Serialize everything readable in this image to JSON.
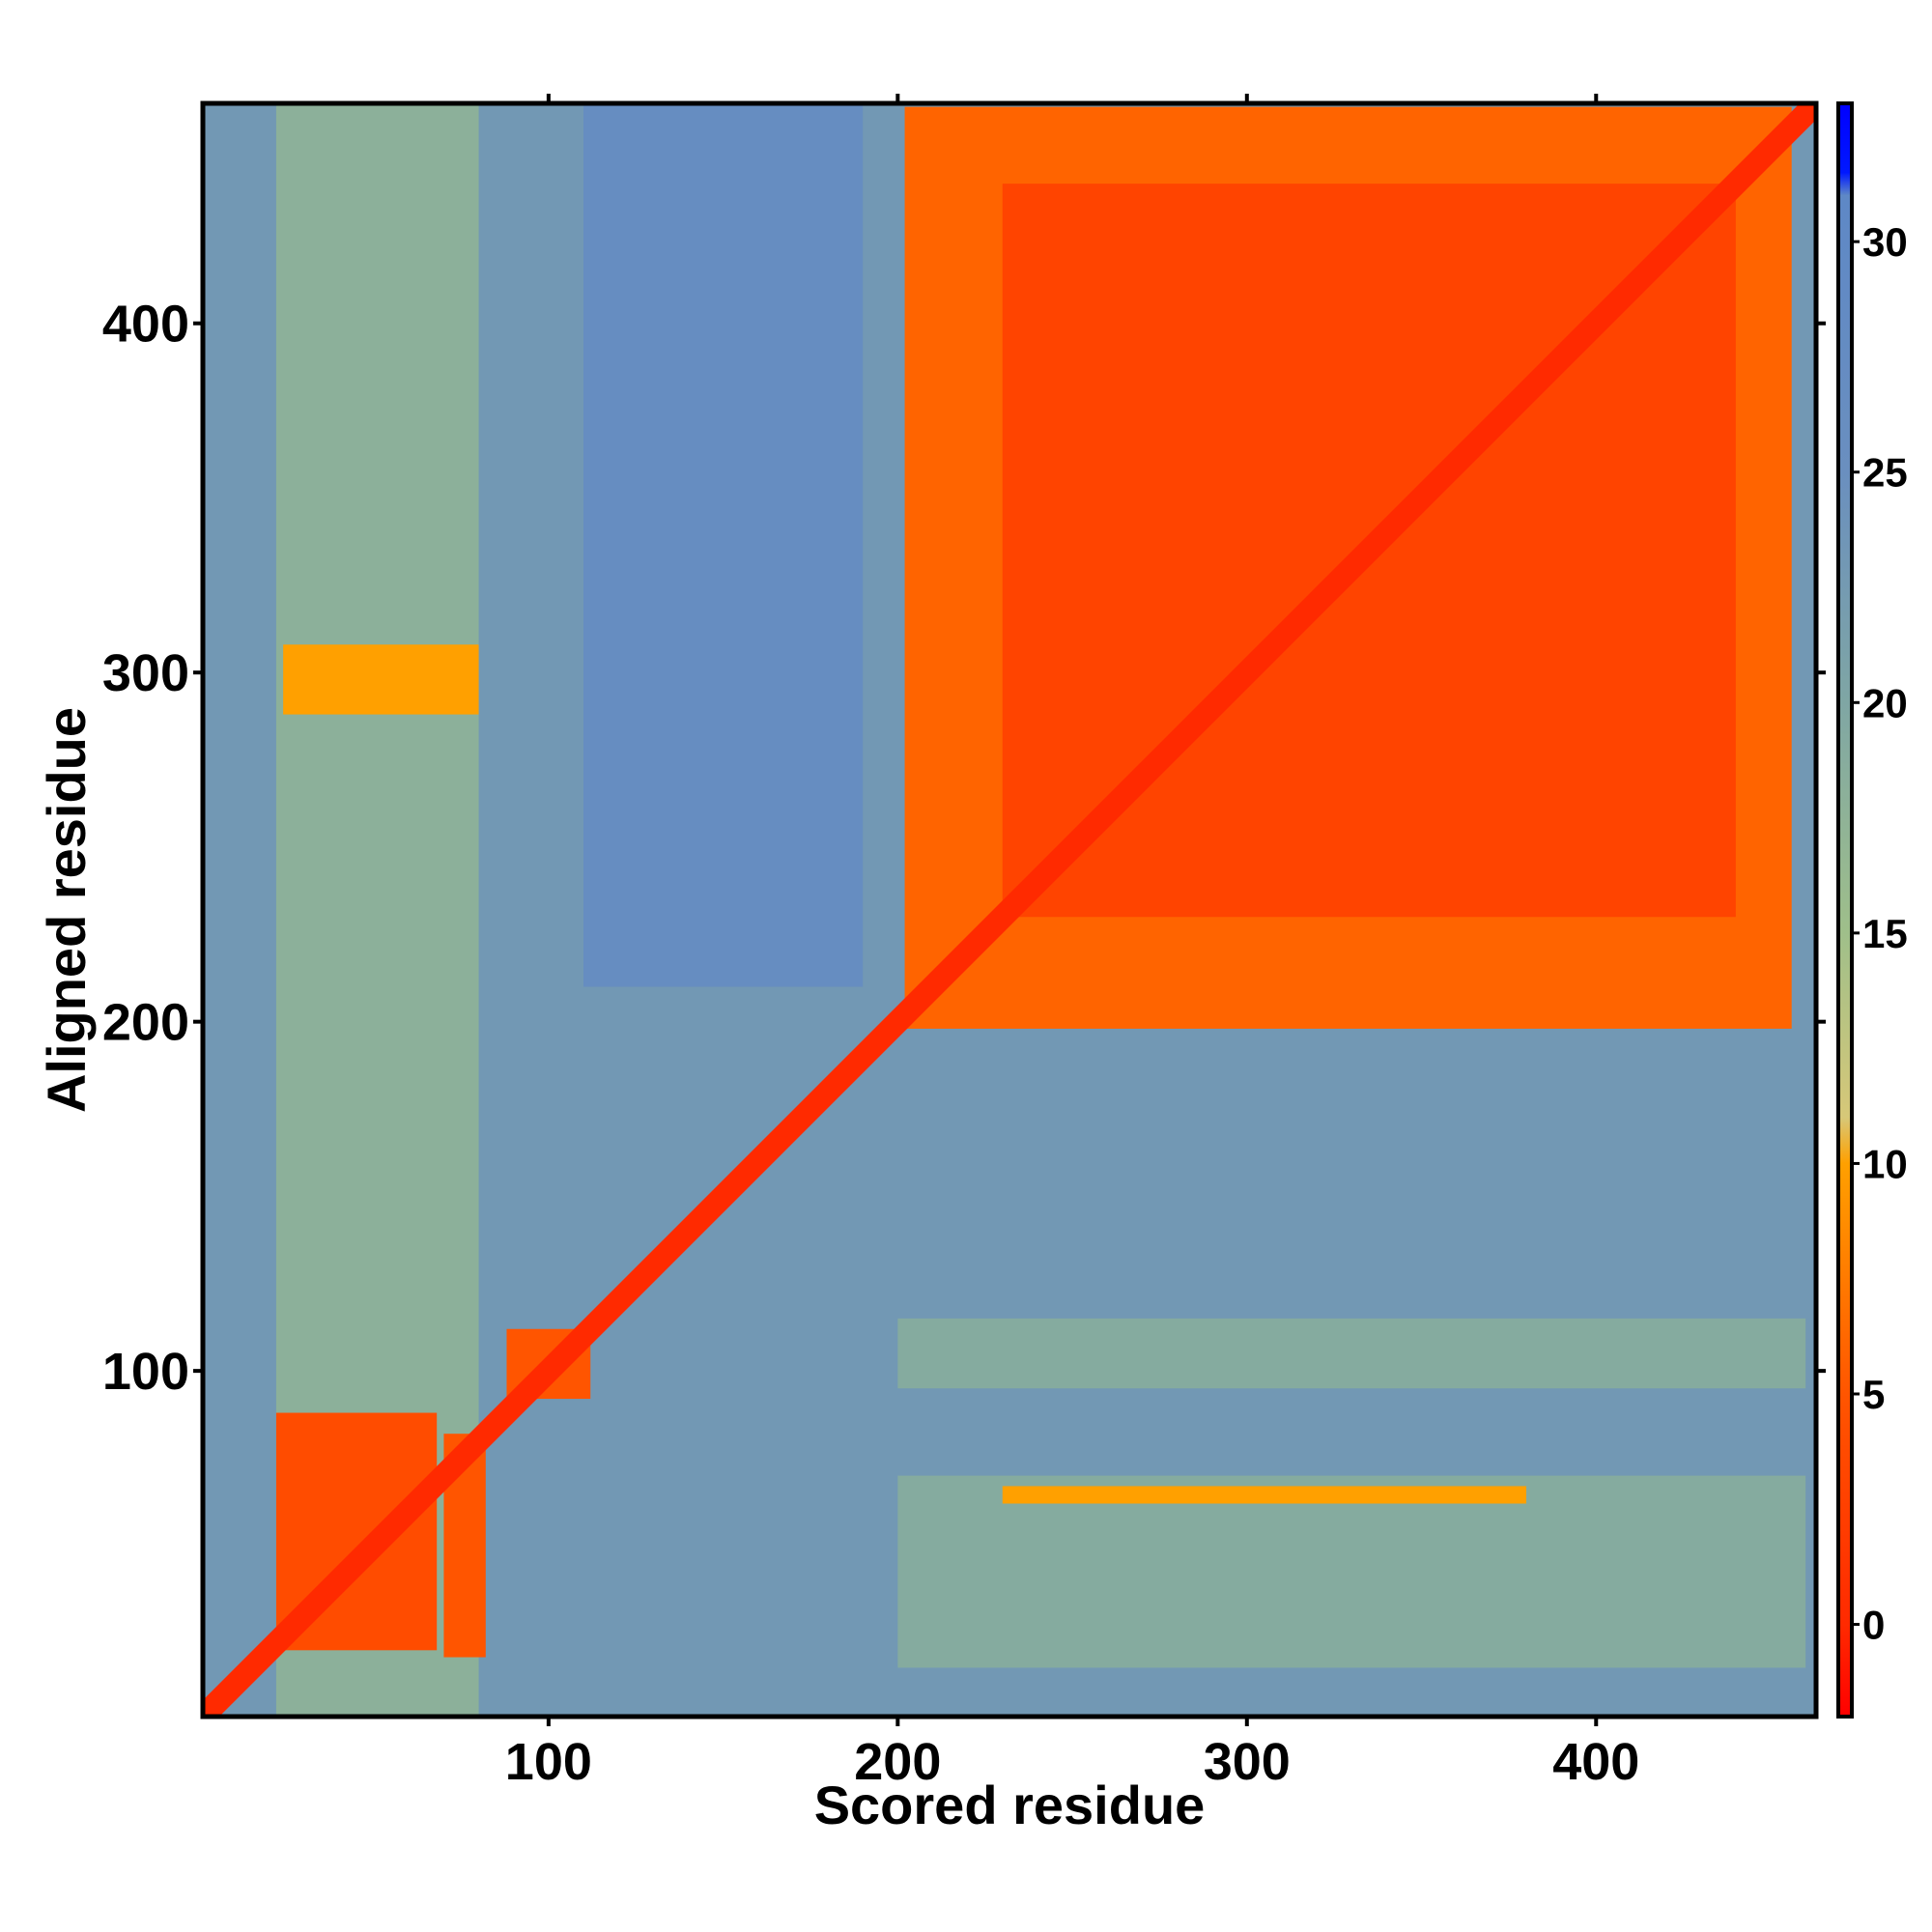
{
  "chart_data": {
    "type": "heatmap",
    "title": "",
    "xlabel": "Scored residue",
    "ylabel": "Aligned residue",
    "xlim": [
      1,
      463
    ],
    "ylim": [
      1,
      463
    ],
    "x_ticks": [
      100,
      200,
      300,
      400
    ],
    "y_ticks": [
      100,
      200,
      300,
      400
    ],
    "colorbar": {
      "ticks": [
        0,
        5,
        10,
        15,
        20,
        25,
        30
      ],
      "range": [
        -2,
        33
      ],
      "stops": [
        {
          "value": -2,
          "color": "#ff0000"
        },
        {
          "value": 0,
          "color": "#ff2a00"
        },
        {
          "value": 5,
          "color": "#ff5500"
        },
        {
          "value": 10,
          "color": "#ffa000"
        },
        {
          "value": 11,
          "color": "#d7c878"
        },
        {
          "value": 15,
          "color": "#9fbf8a"
        },
        {
          "value": 20,
          "color": "#7fa6a4"
        },
        {
          "value": 25,
          "color": "#6a8fbf"
        },
        {
          "value": 31,
          "color": "#5e88c6"
        },
        {
          "value": 31.5,
          "color": "#0018ff"
        },
        {
          "value": 33,
          "color": "#0000ff"
        }
      ]
    },
    "regions": [
      {
        "name": "background",
        "x": [
          1,
          463
        ],
        "y": [
          1,
          463
        ],
        "value": 23
      },
      {
        "name": "lightband-left",
        "x": [
          22,
          80
        ],
        "y": [
          1,
          463
        ],
        "value": 18
      },
      {
        "name": "darkband-mid",
        "x": [
          110,
          190
        ],
        "y": [
          210,
          463
        ],
        "value": 27
      },
      {
        "name": "lightband-bottom",
        "x": [
          200,
          460
        ],
        "y": [
          15,
          70
        ],
        "value": 19
      },
      {
        "name": "lightband-row100",
        "x": [
          200,
          460
        ],
        "y": [
          95,
          115
        ],
        "value": 19
      },
      {
        "name": "domain-upper-right",
        "x": [
          202,
          456
        ],
        "y": [
          198,
          462
        ],
        "value": 6
      },
      {
        "name": "domain-upper-right-core",
        "x": [
          230,
          440
        ],
        "y": [
          230,
          440
        ],
        "value": 3
      },
      {
        "name": "domain-lower-left",
        "x": [
          22,
          68
        ],
        "y": [
          20,
          88
        ],
        "value": 4
      },
      {
        "name": "domain-lower-left-b",
        "x": [
          70,
          82
        ],
        "y": [
          18,
          82
        ],
        "value": 5
      },
      {
        "name": "domain-small",
        "x": [
          88,
          112
        ],
        "y": [
          92,
          112
        ],
        "value": 5
      },
      {
        "name": "contact-row-65",
        "x": [
          230,
          380
        ],
        "y": [
          62,
          67
        ],
        "value": 10
      },
      {
        "name": "contact-block-300",
        "x": [
          24,
          80
        ],
        "y": [
          288,
          308
        ],
        "value": 10
      }
    ],
    "diagonal": {
      "value": 0,
      "width": 8
    }
  }
}
